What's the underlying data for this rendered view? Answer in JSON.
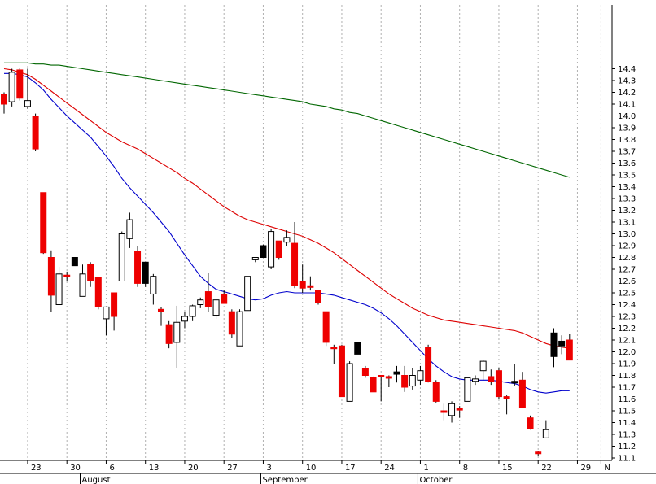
{
  "chart_data": {
    "type": "candlestick",
    "title": "",
    "xlabel": "",
    "ylabel": "",
    "ylim": [
      11.05,
      14.47
    ],
    "y_ticks": [
      "14.4",
      "14.3",
      "14.2",
      "14.1",
      "14.0",
      "13.9",
      "13.8",
      "13.7",
      "13.6",
      "13.5",
      "13.4",
      "13.3",
      "13.2",
      "13.1",
      "13.0",
      "12.9",
      "12.8",
      "12.7",
      "12.6",
      "12.5",
      "12.4",
      "12.3",
      "12.2",
      "12.1",
      "12.0",
      "11.9",
      "11.8",
      "11.7",
      "11.6",
      "11.5",
      "11.4",
      "11.3",
      "11.2",
      "11.1"
    ],
    "x_tick_labels": [
      {
        "label": "23",
        "idx": 3
      },
      {
        "label": "30",
        "idx": 8
      },
      {
        "label": "6",
        "idx": 13
      },
      {
        "label": "13",
        "idx": 18
      },
      {
        "label": "20",
        "idx": 23
      },
      {
        "label": "27",
        "idx": 28
      },
      {
        "label": "3",
        "idx": 33
      },
      {
        "label": "10",
        "idx": 38
      },
      {
        "label": "17",
        "idx": 43
      },
      {
        "label": "24",
        "idx": 48
      },
      {
        "label": "1",
        "idx": 53
      },
      {
        "label": "8",
        "idx": 58
      },
      {
        "label": "15",
        "idx": 63
      },
      {
        "label": "22",
        "idx": 68
      },
      {
        "label": "29",
        "idx": 73
      },
      {
        "label": "N",
        "idx": 76
      }
    ],
    "month_labels": [
      {
        "label": "August",
        "idx": 10
      },
      {
        "label": "September",
        "idx": 33
      },
      {
        "label": "October",
        "idx": 53
      }
    ],
    "candles": [
      {
        "o": 14.1,
        "h": 14.2,
        "l": 14.02,
        "c": 14.18,
        "color": "red"
      },
      {
        "o": 14.12,
        "h": 14.4,
        "l": 14.08,
        "c": 14.37,
        "color": "white"
      },
      {
        "o": 14.39,
        "h": 14.41,
        "l": 14.13,
        "c": 14.15,
        "color": "red"
      },
      {
        "o": 14.08,
        "h": 14.4,
        "l": 14.06,
        "c": 14.13,
        "color": "white"
      },
      {
        "o": 14.0,
        "h": 14.02,
        "l": 13.7,
        "c": 13.72,
        "color": "red"
      },
      {
        "o": 13.35,
        "h": 13.35,
        "l": 12.83,
        "c": 12.84,
        "color": "red"
      },
      {
        "o": 12.8,
        "h": 12.86,
        "l": 12.34,
        "c": 12.48,
        "color": "red"
      },
      {
        "o": 12.4,
        "h": 12.72,
        "l": 12.4,
        "c": 12.66,
        "color": "white"
      },
      {
        "o": 12.65,
        "h": 12.68,
        "l": 12.6,
        "c": 12.65,
        "color": "red"
      },
      {
        "o": 12.73,
        "h": 12.8,
        "l": 12.73,
        "c": 12.8,
        "color": "black"
      },
      {
        "o": 12.47,
        "h": 12.74,
        "l": 12.47,
        "c": 12.66,
        "color": "white"
      },
      {
        "o": 12.74,
        "h": 12.76,
        "l": 12.55,
        "c": 12.6,
        "color": "red"
      },
      {
        "o": 12.63,
        "h": 12.63,
        "l": 12.36,
        "c": 12.38,
        "color": "red"
      },
      {
        "o": 12.28,
        "h": 12.38,
        "l": 12.14,
        "c": 12.38,
        "color": "white"
      },
      {
        "o": 12.5,
        "h": 12.5,
        "l": 12.18,
        "c": 12.3,
        "color": "red"
      },
      {
        "o": 12.6,
        "h": 13.02,
        "l": 12.6,
        "c": 13.0,
        "color": "white"
      },
      {
        "o": 12.96,
        "h": 13.18,
        "l": 12.88,
        "c": 13.12,
        "color": "white"
      },
      {
        "o": 12.85,
        "h": 12.9,
        "l": 12.55,
        "c": 12.58,
        "color": "red"
      },
      {
        "o": 12.58,
        "h": 12.76,
        "l": 12.55,
        "c": 12.76,
        "color": "black"
      },
      {
        "o": 12.49,
        "h": 12.66,
        "l": 12.4,
        "c": 12.64,
        "color": "white"
      },
      {
        "o": 12.36,
        "h": 12.38,
        "l": 12.22,
        "c": 12.34,
        "color": "red"
      },
      {
        "o": 12.23,
        "h": 12.26,
        "l": 12.03,
        "c": 12.07,
        "color": "red"
      },
      {
        "o": 12.08,
        "h": 12.39,
        "l": 11.86,
        "c": 12.25,
        "color": "white"
      },
      {
        "o": 12.26,
        "h": 12.34,
        "l": 12.2,
        "c": 12.3,
        "color": "white"
      },
      {
        "o": 12.3,
        "h": 12.4,
        "l": 12.26,
        "c": 12.39,
        "color": "white"
      },
      {
        "o": 12.4,
        "h": 12.46,
        "l": 12.37,
        "c": 12.44,
        "color": "white"
      },
      {
        "o": 12.51,
        "h": 12.67,
        "l": 12.34,
        "c": 12.38,
        "color": "red"
      },
      {
        "o": 12.31,
        "h": 12.45,
        "l": 12.28,
        "c": 12.44,
        "color": "white"
      },
      {
        "o": 12.49,
        "h": 12.52,
        "l": 12.41,
        "c": 12.41,
        "color": "red"
      },
      {
        "o": 12.34,
        "h": 12.36,
        "l": 12.12,
        "c": 12.15,
        "color": "red"
      },
      {
        "o": 12.05,
        "h": 12.36,
        "l": 12.05,
        "c": 12.34,
        "color": "white"
      },
      {
        "o": 12.35,
        "h": 12.64,
        "l": 12.35,
        "c": 12.64,
        "color": "white"
      },
      {
        "o": 12.78,
        "h": 12.8,
        "l": 12.76,
        "c": 12.8,
        "color": "white"
      },
      {
        "o": 12.8,
        "h": 12.91,
        "l": 12.8,
        "c": 12.9,
        "color": "black"
      },
      {
        "o": 12.72,
        "h": 13.04,
        "l": 12.7,
        "c": 13.02,
        "color": "white"
      },
      {
        "o": 12.94,
        "h": 12.94,
        "l": 12.78,
        "c": 12.8,
        "color": "red"
      },
      {
        "o": 12.93,
        "h": 13.03,
        "l": 12.9,
        "c": 12.97,
        "color": "white"
      },
      {
        "o": 12.92,
        "h": 13.1,
        "l": 12.54,
        "c": 12.56,
        "color": "red"
      },
      {
        "o": 12.6,
        "h": 12.74,
        "l": 12.5,
        "c": 12.54,
        "color": "red"
      },
      {
        "o": 12.56,
        "h": 12.64,
        "l": 12.52,
        "c": 12.56,
        "color": "red"
      },
      {
        "o": 12.52,
        "h": 12.52,
        "l": 12.4,
        "c": 12.42,
        "color": "red"
      },
      {
        "o": 12.34,
        "h": 12.34,
        "l": 12.05,
        "c": 12.08,
        "color": "red"
      },
      {
        "o": 12.04,
        "h": 12.06,
        "l": 11.9,
        "c": 12.04,
        "color": "red"
      },
      {
        "o": 12.05,
        "h": 12.06,
        "l": 11.62,
        "c": 11.62,
        "color": "red"
      },
      {
        "o": 11.58,
        "h": 11.92,
        "l": 11.58,
        "c": 11.9,
        "color": "white"
      },
      {
        "o": 11.98,
        "h": 12.08,
        "l": 11.98,
        "c": 12.08,
        "color": "black"
      },
      {
        "o": 11.86,
        "h": 11.88,
        "l": 11.78,
        "c": 11.8,
        "color": "red"
      },
      {
        "o": 11.78,
        "h": 11.79,
        "l": 11.66,
        "c": 11.66,
        "color": "red"
      },
      {
        "o": 11.8,
        "h": 11.8,
        "l": 11.58,
        "c": 11.8,
        "color": "red"
      },
      {
        "o": 11.78,
        "h": 11.8,
        "l": 11.7,
        "c": 11.79,
        "color": "red"
      },
      {
        "o": 11.81,
        "h": 11.88,
        "l": 11.74,
        "c": 11.83,
        "color": "black"
      },
      {
        "o": 11.8,
        "h": 11.88,
        "l": 11.66,
        "c": 11.7,
        "color": "red"
      },
      {
        "o": 11.71,
        "h": 11.86,
        "l": 11.68,
        "c": 11.8,
        "color": "white"
      },
      {
        "o": 11.76,
        "h": 11.88,
        "l": 11.72,
        "c": 11.84,
        "color": "white"
      },
      {
        "o": 12.04,
        "h": 12.06,
        "l": 11.74,
        "c": 11.75,
        "color": "red"
      },
      {
        "o": 11.74,
        "h": 11.76,
        "l": 11.57,
        "c": 11.58,
        "color": "red"
      },
      {
        "o": 11.5,
        "h": 11.56,
        "l": 11.42,
        "c": 11.5,
        "color": "red"
      },
      {
        "o": 11.46,
        "h": 11.58,
        "l": 11.4,
        "c": 11.56,
        "color": "white"
      },
      {
        "o": 11.52,
        "h": 11.54,
        "l": 11.44,
        "c": 11.51,
        "color": "red"
      },
      {
        "o": 11.58,
        "h": 11.78,
        "l": 11.58,
        "c": 11.78,
        "color": "white"
      },
      {
        "o": 11.75,
        "h": 11.8,
        "l": 11.72,
        "c": 11.77,
        "color": "white"
      },
      {
        "o": 11.84,
        "h": 11.93,
        "l": 11.76,
        "c": 11.92,
        "color": "white"
      },
      {
        "o": 11.79,
        "h": 11.85,
        "l": 11.72,
        "c": 11.75,
        "color": "red"
      },
      {
        "o": 11.84,
        "h": 11.86,
        "l": 11.6,
        "c": 11.62,
        "color": "red"
      },
      {
        "o": 11.62,
        "h": 11.63,
        "l": 11.47,
        "c": 11.62,
        "color": "red"
      },
      {
        "o": 11.75,
        "h": 11.9,
        "l": 11.71,
        "c": 11.75,
        "color": "black"
      },
      {
        "o": 11.76,
        "h": 11.83,
        "l": 11.53,
        "c": 11.53,
        "color": "red"
      },
      {
        "o": 11.44,
        "h": 11.46,
        "l": 11.34,
        "c": 11.35,
        "color": "red"
      },
      {
        "o": 11.14,
        "h": 11.16,
        "l": 11.12,
        "c": 11.15,
        "color": "red"
      },
      {
        "o": 11.27,
        "h": 11.42,
        "l": 11.27,
        "c": 11.34,
        "color": "white"
      },
      {
        "o": 12.16,
        "h": 12.2,
        "l": 11.87,
        "c": 11.96,
        "color": "black"
      },
      {
        "o": 12.09,
        "h": 12.14,
        "l": 11.98,
        "c": 12.05,
        "color": "black"
      },
      {
        "o": 12.1,
        "h": 12.15,
        "l": 11.93,
        "c": 11.93,
        "color": "red"
      }
    ],
    "series": [
      {
        "color": "#0000cc",
        "values": [
          14.36,
          14.36,
          14.35,
          14.33,
          14.28,
          14.22,
          14.14,
          14.07,
          14.0,
          13.94,
          13.88,
          13.82,
          13.74,
          13.66,
          13.57,
          13.47,
          13.39,
          13.32,
          13.25,
          13.18,
          13.1,
          13.02,
          12.92,
          12.82,
          12.73,
          12.64,
          12.58,
          12.53,
          12.51,
          12.49,
          12.47,
          12.45,
          12.44,
          12.45,
          12.48,
          12.5,
          12.51,
          12.5,
          12.5,
          12.5,
          12.5,
          12.49,
          12.48,
          12.46,
          12.44,
          12.42,
          12.4,
          12.37,
          12.33,
          12.28,
          12.22,
          12.15,
          12.08,
          12.01,
          11.94,
          11.88,
          11.83,
          11.79,
          11.77,
          11.76,
          11.76,
          11.76,
          11.76,
          11.75,
          11.74,
          11.73,
          11.71,
          11.68,
          11.66,
          11.65,
          11.66,
          11.67,
          11.67
        ]
      },
      {
        "color": "#dd0000",
        "values": [
          14.4,
          14.39,
          14.37,
          14.35,
          14.31,
          14.26,
          14.21,
          14.16,
          14.11,
          14.06,
          14.01,
          13.96,
          13.91,
          13.86,
          13.82,
          13.78,
          13.75,
          13.72,
          13.68,
          13.64,
          13.6,
          13.56,
          13.52,
          13.47,
          13.43,
          13.38,
          13.33,
          13.28,
          13.23,
          13.19,
          13.15,
          13.12,
          13.1,
          13.08,
          13.06,
          13.04,
          13.02,
          13.0,
          12.98,
          12.95,
          12.92,
          12.88,
          12.84,
          12.79,
          12.74,
          12.69,
          12.64,
          12.59,
          12.54,
          12.49,
          12.45,
          12.41,
          12.37,
          12.34,
          12.31,
          12.29,
          12.27,
          12.26,
          12.25,
          12.24,
          12.23,
          12.22,
          12.21,
          12.2,
          12.19,
          12.18,
          12.16,
          12.13,
          12.1,
          12.07,
          12.05,
          12.04,
          12.03
        ]
      },
      {
        "color": "#006600",
        "values": [
          14.45,
          14.45,
          14.45,
          14.45,
          14.44,
          14.44,
          14.43,
          14.43,
          14.42,
          14.41,
          14.4,
          14.39,
          14.38,
          14.37,
          14.36,
          14.35,
          14.34,
          14.33,
          14.32,
          14.31,
          14.3,
          14.29,
          14.28,
          14.27,
          14.26,
          14.25,
          14.24,
          14.23,
          14.22,
          14.21,
          14.2,
          14.19,
          14.18,
          14.17,
          14.16,
          14.15,
          14.14,
          14.13,
          14.12,
          14.1,
          14.09,
          14.08,
          14.06,
          14.05,
          14.03,
          14.02,
          14.0,
          13.98,
          13.96,
          13.94,
          13.92,
          13.9,
          13.88,
          13.86,
          13.84,
          13.82,
          13.8,
          13.78,
          13.76,
          13.74,
          13.72,
          13.7,
          13.68,
          13.66,
          13.64,
          13.62,
          13.6,
          13.58,
          13.56,
          13.54,
          13.52,
          13.5,
          13.48
        ]
      }
    ],
    "grid": true
  }
}
